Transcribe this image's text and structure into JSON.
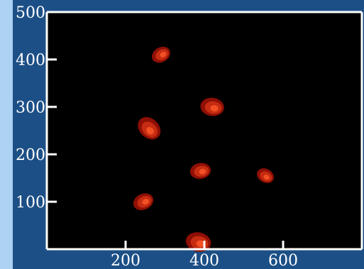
{
  "chart_data": {
    "type": "scatter",
    "title": "",
    "xlabel": "",
    "ylabel": "",
    "xlim": [
      0,
      800
    ],
    "ylim": [
      0,
      500
    ],
    "grid": false,
    "x_ticks": [
      200,
      400,
      600
    ],
    "y_ticks": [
      100,
      200,
      300,
      400,
      500
    ],
    "x_tick_labels": [
      "200",
      "400",
      "600"
    ],
    "y_tick_labels": [
      "100",
      "200",
      "300",
      "400",
      "500"
    ],
    "points": [
      {
        "x": 290,
        "y": 410,
        "size": 26
      },
      {
        "x": 420,
        "y": 300,
        "size": 32
      },
      {
        "x": 260,
        "y": 255,
        "size": 34
      },
      {
        "x": 390,
        "y": 165,
        "size": 28
      },
      {
        "x": 555,
        "y": 155,
        "size": 24
      },
      {
        "x": 245,
        "y": 100,
        "size": 28
      },
      {
        "x": 385,
        "y": 15,
        "size": 34
      }
    ]
  },
  "colors": {
    "background": "#1c4f86",
    "left_strip": "#aed2f1",
    "plot_area": "#000000",
    "axis": "#ffffff",
    "blob_outer": "#8e0f05",
    "blob_mid": "#c52c11",
    "blob_core": "#ff5a2a"
  }
}
